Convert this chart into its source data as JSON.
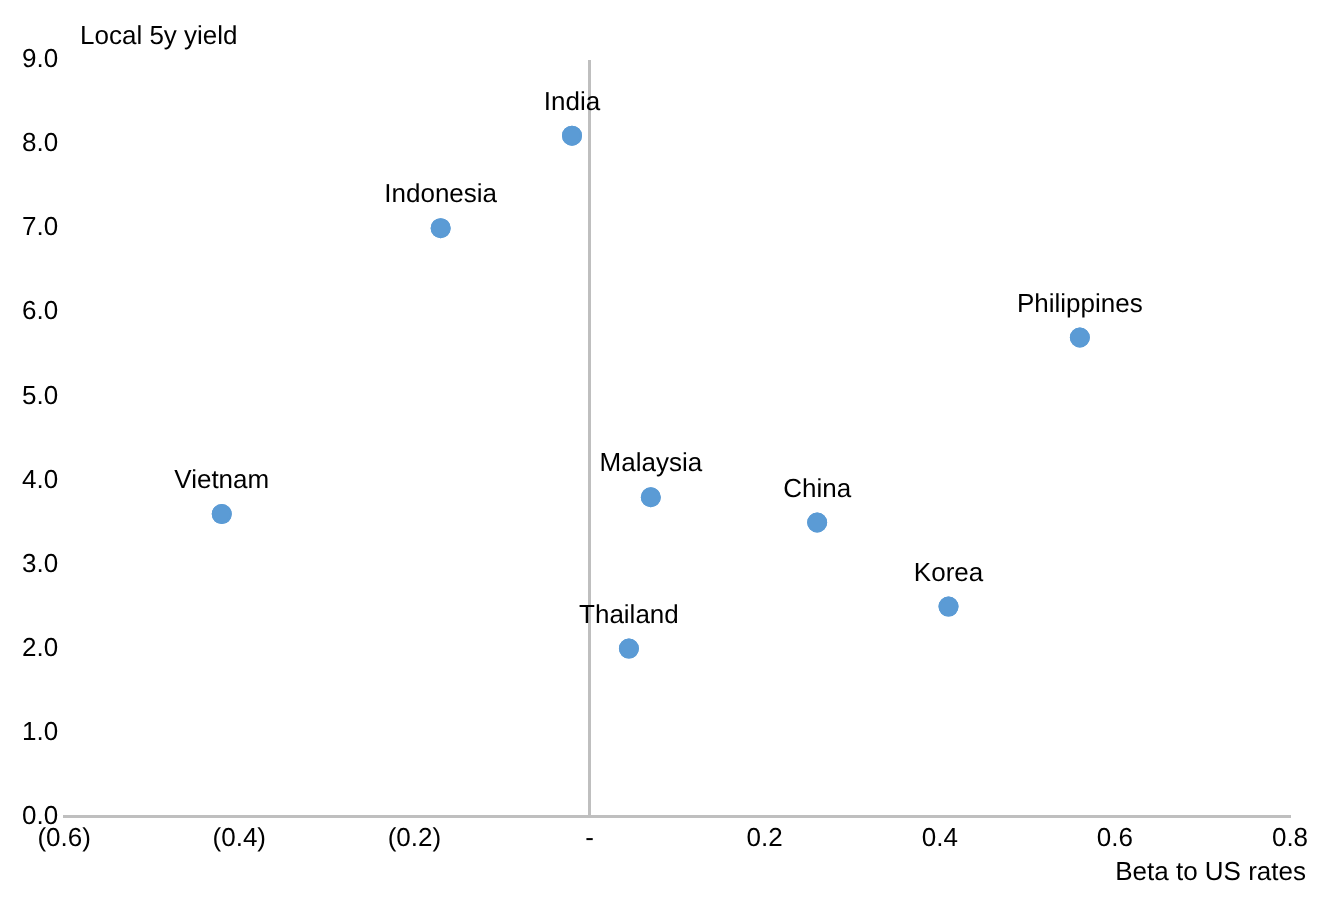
{
  "chart_data": {
    "type": "scatter",
    "ylabel": "Local 5y yield",
    "xlabel": "Beta to US rates",
    "x": [
      -0.02,
      -0.17,
      0.56,
      -0.42,
      0.07,
      0.26,
      0.41,
      0.045
    ],
    "values": [
      8.1,
      7.0,
      5.7,
      3.6,
      3.8,
      3.5,
      2.5,
      2.0
    ],
    "color": "#5b9bd5",
    "marker": "circle",
    "grid": false,
    "legend": false,
    "xlim": [
      -0.6,
      0.8
    ],
    "xticks": [
      {
        "value": -0.6,
        "label": "(0.6)"
      },
      {
        "value": -0.4,
        "label": "(0.4)"
      },
      {
        "value": -0.2,
        "label": "(0.2)"
      },
      {
        "value": 0,
        "label": "-"
      },
      0.2,
      0.4,
      0.6,
      0.8
    ],
    "ylim": [
      0,
      9
    ],
    "yticks": [
      {
        "value": 0,
        "label": "0.0"
      },
      {
        "value": 1,
        "label": "1.0"
      },
      {
        "value": 2,
        "label": "2.0"
      },
      {
        "value": 3,
        "label": "3.0"
      },
      {
        "value": 4,
        "label": "4.0"
      },
      {
        "value": 5,
        "label": "5.0"
      },
      {
        "value": 6,
        "label": "6.0"
      },
      {
        "value": 7,
        "label": "7.0"
      },
      {
        "value": 8,
        "label": "8.0"
      },
      {
        "value": 9,
        "label": "9.0"
      }
    ],
    "ref_lines": [
      {
        "axis": "x",
        "value": 0,
        "color": "#bfbfbf"
      }
    ],
    "annotations": [
      {
        "text": "India",
        "x": -0.02,
        "y": 8.1
      },
      {
        "text": "Indonesia",
        "x": -0.17,
        "y": 7.0
      },
      {
        "text": "Philippines",
        "x": 0.56,
        "y": 5.7
      },
      {
        "text": "Vietnam",
        "x": -0.42,
        "y": 3.6
      },
      {
        "text": "Malaysia",
        "x": 0.07,
        "y": 3.8
      },
      {
        "text": "China",
        "x": 0.26,
        "y": 3.5
      },
      {
        "text": "Korea",
        "x": 0.41,
        "y": 2.5
      },
      {
        "text": "Thailand",
        "x": 0.045,
        "y": 2.0
      }
    ]
  }
}
